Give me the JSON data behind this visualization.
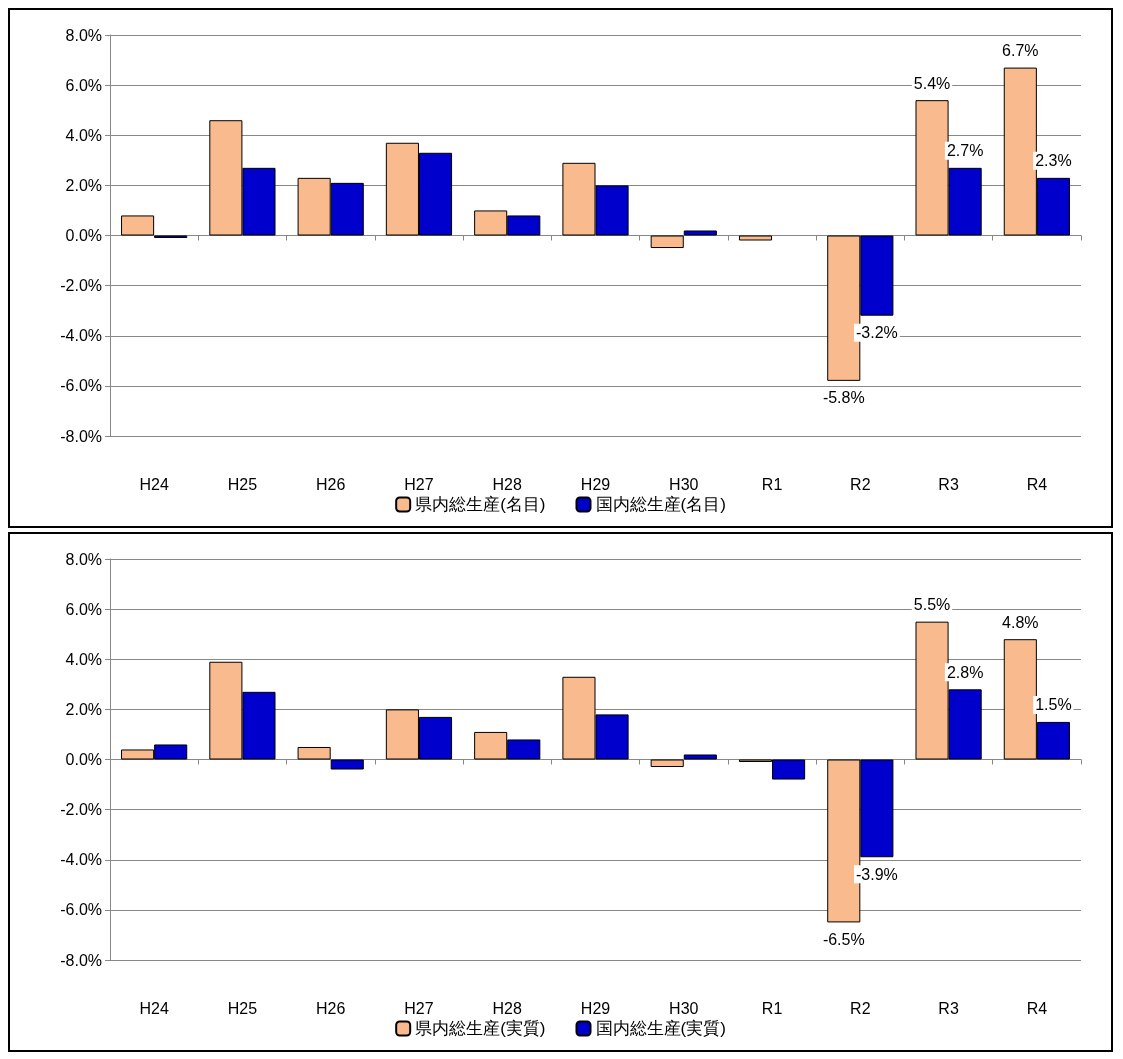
{
  "chart_data": [
    {
      "type": "bar",
      "categories": [
        "H24",
        "H25",
        "H26",
        "H27",
        "H28",
        "H29",
        "H30",
        "R1",
        "R2",
        "R3",
        "R4"
      ],
      "series": [
        {
          "name": "県内総生産(名目)",
          "color": "#f9bb8e",
          "values": [
            0.8,
            4.6,
            2.3,
            3.7,
            1.0,
            2.9,
            -0.5,
            -0.2,
            -5.8,
            5.4,
            6.7
          ],
          "value_labels": [
            null,
            null,
            null,
            null,
            null,
            null,
            null,
            null,
            "-5.8%",
            "5.4%",
            "6.7%"
          ]
        },
        {
          "name": "国内総生産(名目)",
          "color": "#0000cc",
          "values": [
            -0.1,
            2.7,
            2.1,
            3.3,
            0.8,
            2.0,
            0.2,
            0.0,
            -3.2,
            2.7,
            2.3
          ],
          "value_labels": [
            null,
            null,
            null,
            null,
            null,
            null,
            null,
            null,
            "-3.2%",
            "2.7%",
            "2.3%"
          ]
        }
      ],
      "ylim": [
        -8,
        8
      ],
      "yticks": [
        {
          "value": -8,
          "label": "-8.0%"
        },
        {
          "value": -6,
          "label": "-6.0%"
        },
        {
          "value": -4,
          "label": "-4.0%"
        },
        {
          "value": -2,
          "label": "-2.0%"
        },
        {
          "value": 0,
          "label": "0.0%"
        },
        {
          "value": 2,
          "label": "2.0%"
        },
        {
          "value": 4,
          "label": "4.0%"
        },
        {
          "value": 6,
          "label": "6.0%"
        },
        {
          "value": 8,
          "label": "8.0%"
        }
      ],
      "grid": "y",
      "legend": "bottom"
    },
    {
      "type": "bar",
      "categories": [
        "H24",
        "H25",
        "H26",
        "H27",
        "H28",
        "H29",
        "H30",
        "R1",
        "R2",
        "R3",
        "R4"
      ],
      "series": [
        {
          "name": "県内総生産(実質)",
          "color": "#f9bb8e",
          "values": [
            0.4,
            3.9,
            0.5,
            2.0,
            1.1,
            3.3,
            -0.3,
            -0.1,
            -6.5,
            5.5,
            4.8
          ],
          "value_labels": [
            null,
            null,
            null,
            null,
            null,
            null,
            null,
            null,
            "-6.5%",
            "5.5%",
            "4.8%"
          ]
        },
        {
          "name": "国内総生産(実質)",
          "color": "#0000cc",
          "values": [
            0.6,
            2.7,
            -0.4,
            1.7,
            0.8,
            1.8,
            0.2,
            -0.8,
            -3.9,
            2.8,
            1.5
          ],
          "value_labels": [
            null,
            null,
            null,
            null,
            null,
            null,
            null,
            null,
            "-3.9%",
            "2.8%",
            "1.5%"
          ]
        }
      ],
      "ylim": [
        -8,
        8
      ],
      "yticks": [
        {
          "value": -8,
          "label": "-8.0%"
        },
        {
          "value": -6,
          "label": "-6.0%"
        },
        {
          "value": -4,
          "label": "-4.0%"
        },
        {
          "value": -2,
          "label": "-2.0%"
        },
        {
          "value": 0,
          "label": "0.0%"
        },
        {
          "value": 2,
          "label": "2.0%"
        },
        {
          "value": 4,
          "label": "4.0%"
        },
        {
          "value": 6,
          "label": "6.0%"
        },
        {
          "value": 8,
          "label": "8.0%"
        }
      ],
      "grid": "y",
      "legend": "bottom"
    }
  ]
}
